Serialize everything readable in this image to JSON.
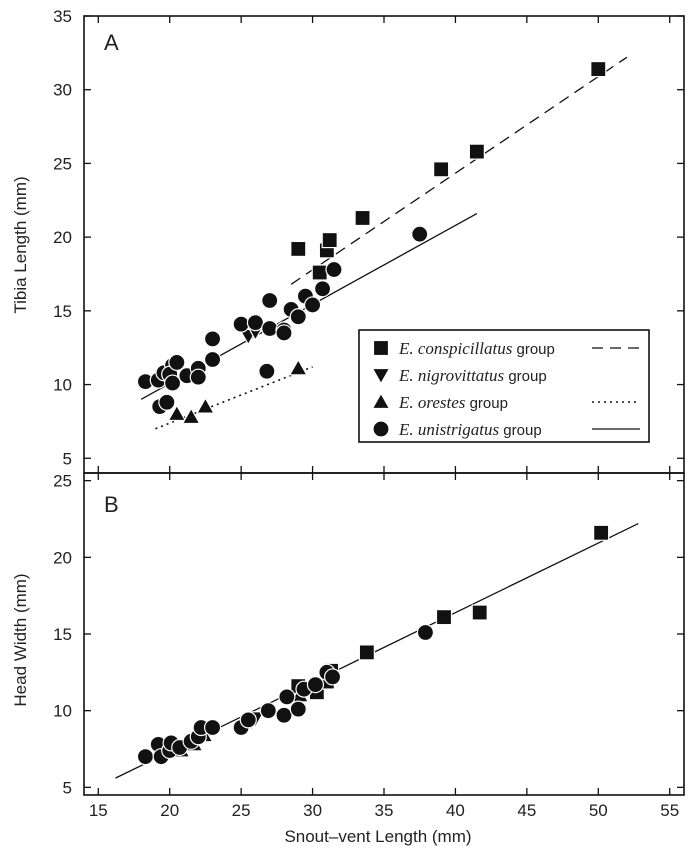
{
  "figure": {
    "x_label": "Snout–vent Length (mm)",
    "x_ticks": [
      "15",
      "20",
      "25",
      "30",
      "35",
      "40",
      "45",
      "50",
      "55"
    ]
  },
  "chart_data": [
    {
      "panel_label": "A",
      "type": "scatter",
      "xlabel": "Snout–vent Length (mm)",
      "ylabel": "Tibia Length (mm)",
      "xlim": [
        14,
        56
      ],
      "ylim": [
        4,
        35
      ],
      "x_ticks": [
        15,
        20,
        25,
        30,
        35,
        40,
        45,
        50,
        55
      ],
      "y_ticks": [
        5,
        10,
        15,
        20,
        25,
        30,
        35
      ],
      "legend": {
        "placement": "lower-right",
        "entries": [
          {
            "italic": "E. conspicillatus",
            "rest": " group",
            "marker": "square",
            "line": "dashed"
          },
          {
            "italic": "E. nigrovittatus",
            "rest": " group",
            "marker": "triangle-down",
            "line": "none"
          },
          {
            "italic": "E. orestes",
            "rest": " group",
            "marker": "triangle-up",
            "line": "dotted"
          },
          {
            "italic": "E. unistrigatus",
            "rest": " group",
            "marker": "circle",
            "line": "solid"
          }
        ]
      },
      "series": [
        {
          "name": "E. conspicillatus group",
          "marker": "square",
          "points": [
            [
              29.0,
              19.2
            ],
            [
              30.5,
              17.6
            ],
            [
              31.0,
              19.1
            ],
            [
              31.2,
              19.8
            ],
            [
              33.5,
              21.3
            ],
            [
              39.0,
              24.6
            ],
            [
              41.5,
              25.8
            ],
            [
              50.0,
              31.4
            ]
          ],
          "fit": {
            "style": "dashed",
            "x": [
              28.5,
              52.0
            ],
            "y": [
              16.8,
              32.2
            ]
          }
        },
        {
          "name": "E. nigrovittatus group",
          "marker": "triangle-down",
          "points": [
            [
              25.5,
              13.3
            ],
            [
              26.0,
              13.6
            ]
          ]
        },
        {
          "name": "E. orestes group",
          "marker": "triangle-up",
          "points": [
            [
              20.5,
              8.0
            ],
            [
              21.5,
              7.8
            ],
            [
              22.5,
              8.5
            ],
            [
              29.0,
              11.1
            ]
          ],
          "fit": {
            "style": "dotted",
            "x": [
              19.0,
              30.0
            ],
            "y": [
              7.0,
              11.2
            ]
          }
        },
        {
          "name": "E. unistrigatus group",
          "marker": "circle",
          "points": [
            [
              18.3,
              10.2
            ],
            [
              19.2,
              10.3
            ],
            [
              19.6,
              10.8
            ],
            [
              20.2,
              11.3
            ],
            [
              20.0,
              10.7
            ],
            [
              20.5,
              11.5
            ],
            [
              20.2,
              10.1
            ],
            [
              19.3,
              8.5
            ],
            [
              19.8,
              8.8
            ],
            [
              21.2,
              10.6
            ],
            [
              22.0,
              11.1
            ],
            [
              22.0,
              10.5
            ],
            [
              23.0,
              11.7
            ],
            [
              23.0,
              13.1
            ],
            [
              25.0,
              14.1
            ],
            [
              26.0,
              14.2
            ],
            [
              27.0,
              13.8
            ],
            [
              27.0,
              15.7
            ],
            [
              28.0,
              13.7
            ],
            [
              28.0,
              13.5
            ],
            [
              28.5,
              15.1
            ],
            [
              29.0,
              14.6
            ],
            [
              29.5,
              16.0
            ],
            [
              30.0,
              15.4
            ],
            [
              30.7,
              16.5
            ],
            [
              31.5,
              17.8
            ],
            [
              26.8,
              10.9
            ],
            [
              37.5,
              20.2
            ]
          ],
          "fit": {
            "style": "solid",
            "x": [
              18.0,
              41.5
            ],
            "y": [
              9.0,
              21.6
            ]
          }
        }
      ]
    },
    {
      "panel_label": "B",
      "type": "scatter",
      "xlabel": "Snout–vent Length (mm)",
      "ylabel": "Head Width (mm)",
      "xlim": [
        14,
        56
      ],
      "ylim": [
        4.5,
        25.5
      ],
      "x_ticks": [
        15,
        20,
        25,
        30,
        35,
        40,
        45,
        50,
        55
      ],
      "y_ticks": [
        5,
        10,
        15,
        20,
        25
      ],
      "series": [
        {
          "name": "E. conspicillatus group",
          "marker": "square",
          "points": [
            [
              29.0,
              11.6
            ],
            [
              30.3,
              11.2
            ],
            [
              31.0,
              11.9
            ],
            [
              31.3,
              12.6
            ],
            [
              33.8,
              13.8
            ],
            [
              39.2,
              16.1
            ],
            [
              41.7,
              16.4
            ],
            [
              50.2,
              21.6
            ]
          ]
        },
        {
          "name": "E. nigrovittatus group",
          "marker": "triangle-down",
          "points": [
            [
              25.7,
              9.3
            ],
            [
              26.0,
              9.5
            ]
          ]
        },
        {
          "name": "E. orestes group",
          "marker": "triangle-up",
          "points": [
            [
              20.8,
              7.4
            ],
            [
              21.7,
              7.8
            ],
            [
              22.4,
              8.4
            ],
            [
              29.1,
              11.0
            ]
          ]
        },
        {
          "name": "E. unistrigatus group",
          "marker": "circle",
          "points": [
            [
              18.3,
              7.0
            ],
            [
              19.2,
              7.8
            ],
            [
              19.4,
              7.0
            ],
            [
              20.0,
              7.4
            ],
            [
              20.1,
              7.9
            ],
            [
              20.7,
              7.6
            ],
            [
              21.5,
              8.0
            ],
            [
              22.0,
              8.3
            ],
            [
              22.2,
              8.9
            ],
            [
              23.0,
              8.9
            ],
            [
              25.0,
              8.9
            ],
            [
              25.5,
              9.4
            ],
            [
              26.9,
              10.0
            ],
            [
              28.0,
              9.7
            ],
            [
              28.2,
              10.9
            ],
            [
              29.0,
              10.1
            ],
            [
              29.4,
              11.4
            ],
            [
              30.2,
              11.7
            ],
            [
              31.0,
              12.5
            ],
            [
              31.4,
              12.2
            ],
            [
              37.9,
              15.1
            ]
          ],
          "fit": {
            "style": "solid",
            "x": [
              16.2,
              52.8
            ],
            "y": [
              5.6,
              22.2
            ]
          }
        }
      ]
    }
  ]
}
